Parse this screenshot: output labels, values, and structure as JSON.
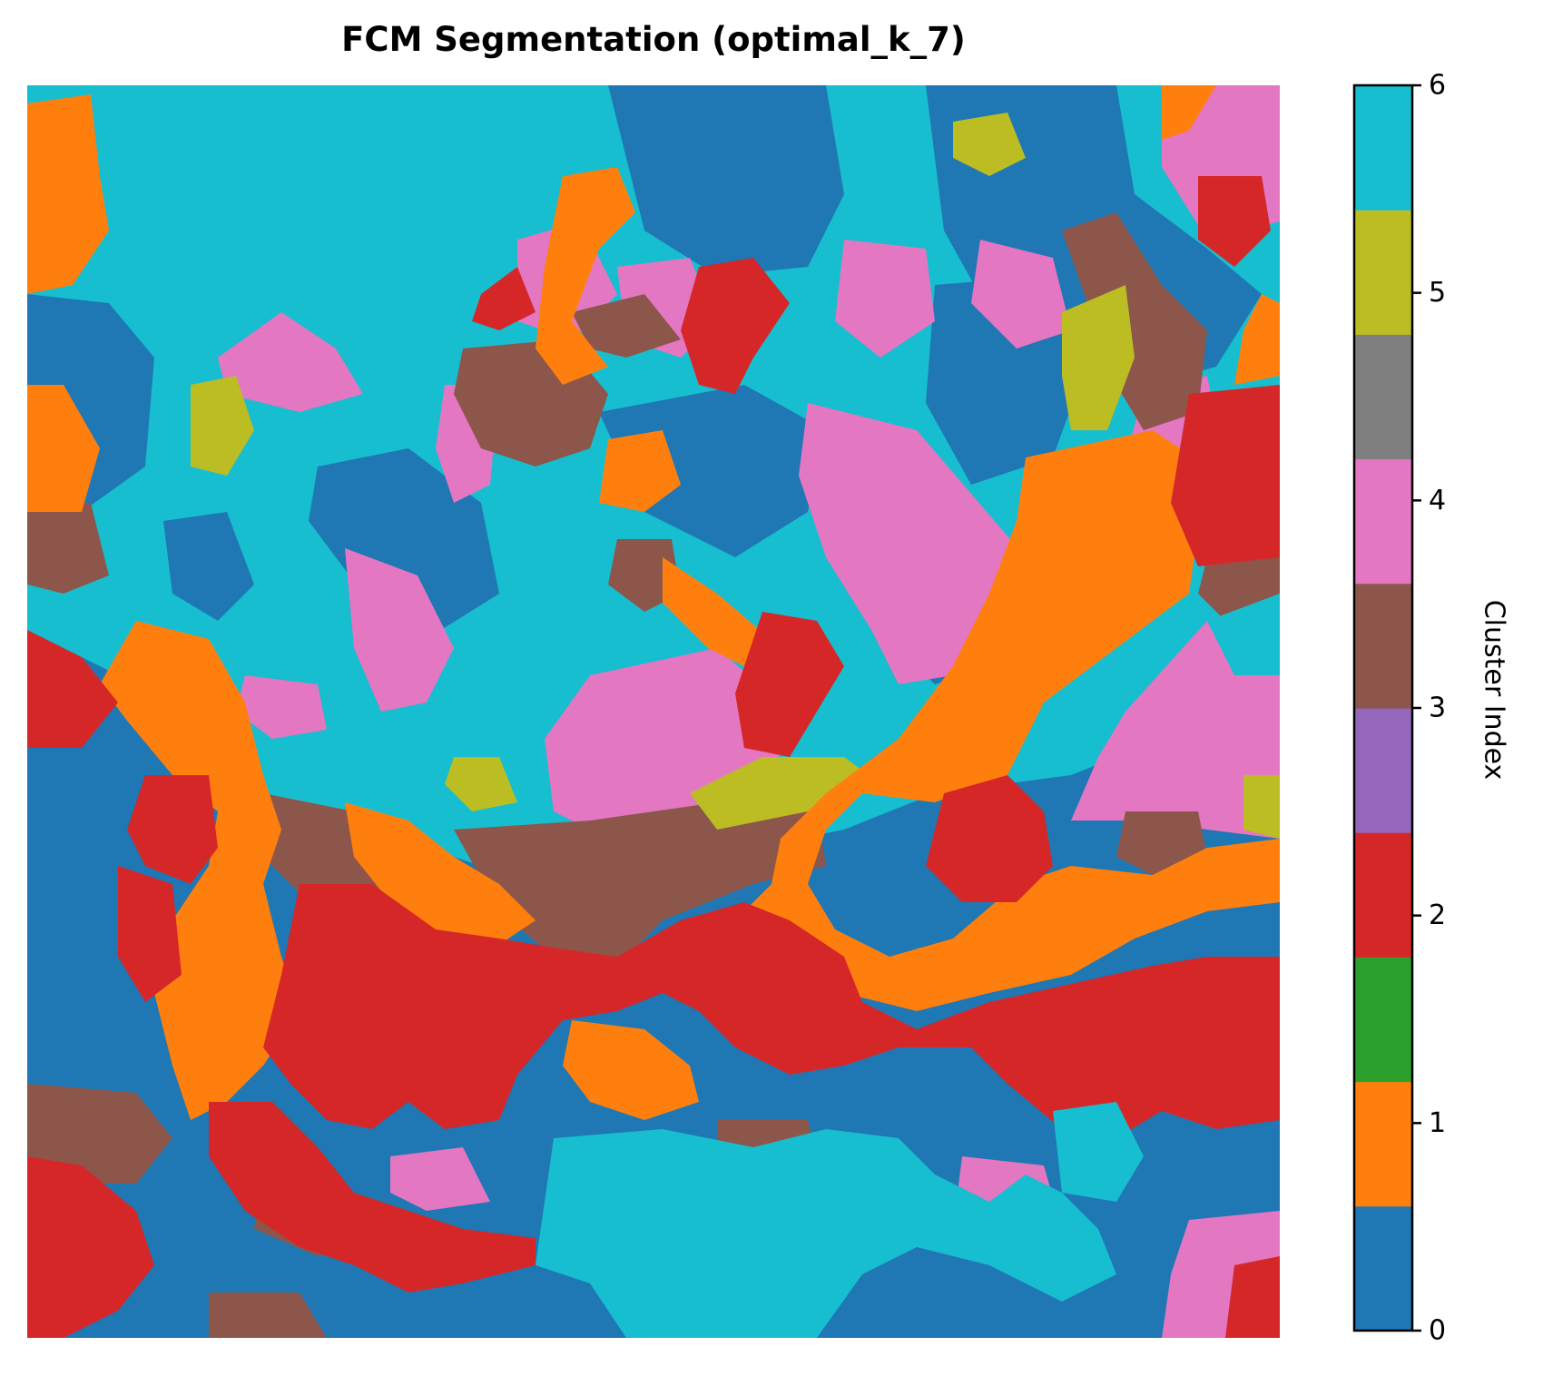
{
  "chart_data": {
    "type": "heatmap",
    "title": "FCM Segmentation (optimal_k_7)",
    "colorbar": {
      "label": "Cluster Index",
      "range": [
        0,
        6
      ],
      "ticks": [
        "0",
        "1",
        "2",
        "3",
        "4",
        "5",
        "6"
      ],
      "palette": [
        "#1f77b4",
        "#ff7f0e",
        "#2ca02c",
        "#d62728",
        "#9467bd",
        "#8c564b",
        "#e377c2",
        "#7f7f7f",
        "#bcbd22",
        "#17becf"
      ]
    },
    "clusters": [
      {
        "index": 0,
        "color": "#1f77b4"
      },
      {
        "index": 1,
        "color": "#ff7f0e"
      },
      {
        "index": 2,
        "color": "#d62728"
      },
      {
        "index": 3,
        "color": "#8c564b"
      },
      {
        "index": 4,
        "color": "#e377c2"
      },
      {
        "index": 5,
        "color": "#bcbd22"
      },
      {
        "index": 6,
        "color": "#17becf"
      }
    ],
    "grid": false,
    "axes_visible": false
  }
}
